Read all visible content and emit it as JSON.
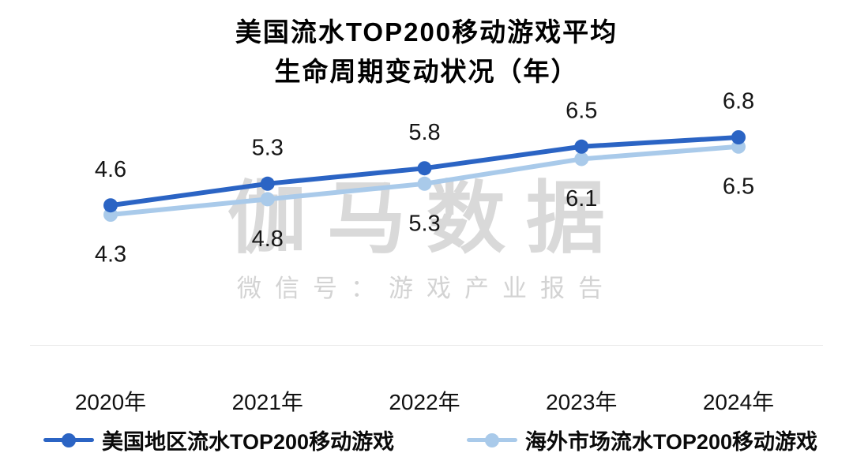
{
  "title": {
    "line1": "美国流水TOP200移动游戏平均",
    "line2": "生命周期变动状况（年）"
  },
  "watermark": {
    "brand": "伽马数据",
    "caption": "微信号：游戏产业报告"
  },
  "chart_data": {
    "type": "line",
    "title": "美国流水TOP200移动游戏平均生命周期变动状况（年）",
    "categories": [
      "2020年",
      "2021年",
      "2022年",
      "2023年",
      "2024年"
    ],
    "series": [
      {
        "name": "美国地区流水TOP200移动游戏",
        "values": [
          4.6,
          5.3,
          5.8,
          6.5,
          6.8
        ],
        "color": "#2B64C4",
        "label_position": "above"
      },
      {
        "name": "海外市场流水TOP200移动游戏",
        "values": [
          4.3,
          4.8,
          5.3,
          6.1,
          6.5
        ],
        "color": "#A9CAEA",
        "label_position": "below"
      }
    ],
    "xlabel": "",
    "ylabel": "",
    "ylim": [
      4.0,
      7.0
    ],
    "grid": false,
    "legend_position": "bottom",
    "data_labels": true
  }
}
